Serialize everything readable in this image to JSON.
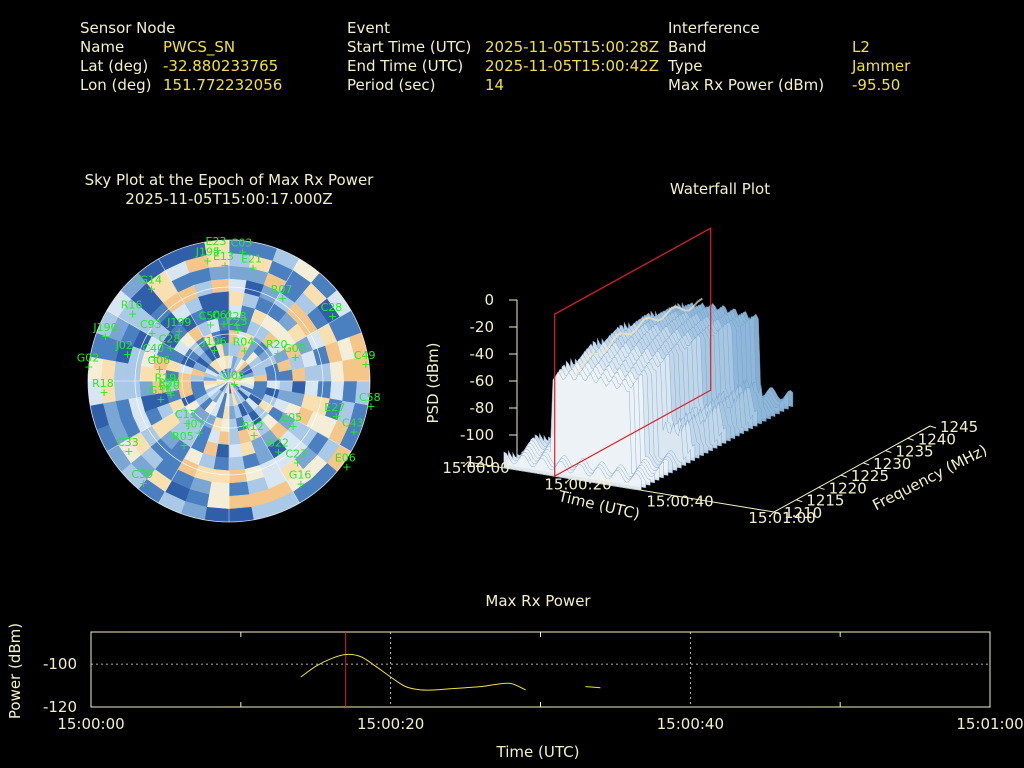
{
  "header": {
    "sensor": {
      "title": "Sensor Node",
      "name_label": "Name",
      "name": "PWCS_SN",
      "lat_label": "Lat (deg)",
      "lat": "-32.880233765",
      "lon_label": "Lon (deg)",
      "lon": "151.772232056"
    },
    "event": {
      "title": "Event",
      "start_label": "Start Time (UTC)",
      "start": "2025-11-05T15:00:28Z",
      "end_label": "End Time (UTC)",
      "end": "2025-11-05T15:00:42Z",
      "period_label": "Period (sec)",
      "period": "14"
    },
    "interference": {
      "title": "Interference",
      "band_label": "Band",
      "band": "L2",
      "type_label": "Type",
      "type": "Jammer",
      "power_label": "Max Rx Power (dBm)",
      "power": "-95.50"
    }
  },
  "colors": {
    "label": "#f5f0c8",
    "value": "#f0e040",
    "satellite": "#22ee22",
    "marker": "#e02020",
    "trace": "#f0e040"
  },
  "chart_data": [
    {
      "type": "heatmap",
      "title": "Sky Plot at the Epoch of Max Rx Power",
      "subtitle": "2025-11-05T15:00:17.000Z",
      "projection": "polar",
      "satellites": [
        {
          "id": "E23",
          "az": -5,
          "el": 84
        },
        {
          "id": "C03",
          "az": 6,
          "el": 83
        },
        {
          "id": "J195",
          "az": -10,
          "el": 78
        },
        {
          "id": "E13",
          "az": -2,
          "el": 74
        },
        {
          "id": "E21",
          "az": 12,
          "el": 74
        },
        {
          "id": "G14",
          "az": -40,
          "el": 77
        },
        {
          "id": "R07",
          "az": 33,
          "el": 63
        },
        {
          "id": "C28",
          "az": 58,
          "el": 78
        },
        {
          "id": "R16",
          "az": -55,
          "el": 75
        },
        {
          "id": "C93",
          "az": -58,
          "el": 58
        },
        {
          "id": "C50",
          "az": -18,
          "el": 38
        },
        {
          "id": "C61",
          "az": -5,
          "el": 37
        },
        {
          "id": "C28",
          "az": 8,
          "el": 36
        },
        {
          "id": "C23",
          "az": 10,
          "el": 33
        },
        {
          "id": "J199",
          "az": -45,
          "el": 45
        },
        {
          "id": "R20",
          "az": 60,
          "el": 36
        },
        {
          "id": "G08",
          "az": 70,
          "el": 45
        },
        {
          "id": "C49",
          "az": 83,
          "el": 88
        },
        {
          "id": "J190",
          "az": -70,
          "el": 84
        },
        {
          "id": "J02",
          "az": -75,
          "el": 67
        },
        {
          "id": "C40",
          "az": -72,
          "el": 50
        },
        {
          "id": "C28",
          "az": -60,
          "el": 43
        },
        {
          "id": "J196",
          "az": -25,
          "el": 22
        },
        {
          "id": "R04",
          "az": 27,
          "el": 22
        },
        {
          "id": "G02",
          "az": -84,
          "el": 90
        },
        {
          "id": "G06",
          "az": -80,
          "el": 45
        },
        {
          "id": "R19",
          "az": -95,
          "el": 40
        },
        {
          "id": "R20",
          "az": -100,
          "el": 38
        },
        {
          "id": "E20",
          "az": -103,
          "el": 38
        },
        {
          "id": "G05",
          "az": 120,
          "el": 4
        },
        {
          "id": "C58",
          "az": 100,
          "el": 92
        },
        {
          "id": "E27",
          "az": 108,
          "el": 72
        },
        {
          "id": "C43",
          "az": 112,
          "el": 86
        },
        {
          "id": "E05",
          "az": 125,
          "el": 50
        },
        {
          "id": "E06",
          "az": 126,
          "el": 93
        },
        {
          "id": "G22",
          "az": 145,
          "el": 55
        },
        {
          "id": "C27",
          "az": 140,
          "el": 68
        },
        {
          "id": "G16",
          "az": 145,
          "el": 80
        },
        {
          "id": "R12",
          "az": 155,
          "el": 38
        },
        {
          "id": "R05",
          "az": -145,
          "el": 50
        },
        {
          "id": "C13",
          "az": -135,
          "el": 38
        },
        {
          "id": "C33",
          "az": -125,
          "el": 78
        },
        {
          "id": "C39",
          "az": -140,
          "el": 85
        },
        {
          "id": "R18",
          "az": -95,
          "el": 80
        },
        {
          "id": "G31",
          "az": -105,
          "el": 45
        },
        {
          "id": "J07",
          "az": -150,
          "el": 38
        }
      ]
    },
    {
      "type": "area",
      "title": "Waterfall Plot",
      "xlabel": "Time (UTC)",
      "ylabel": "Frequency (MHz)",
      "zlabel": "PSD (dBm)",
      "x_ticks": [
        "15:00:00",
        "15:00:20",
        "15:00:40",
        "15:01:00"
      ],
      "y_ticks": [
        1210,
        1215,
        1220,
        1225,
        1230,
        1235,
        1240,
        1245
      ],
      "z_ticks": [
        0,
        -20,
        -40,
        -60,
        -80,
        -100,
        -120
      ],
      "marker_time": "15:00:17"
    },
    {
      "type": "line",
      "title": "Max Rx Power",
      "xlabel": "Time (UTC)",
      "ylabel": "Power (dBm)",
      "x_ticks": [
        "15:00:00",
        "15:00:20",
        "15:00:40",
        "15:01:00"
      ],
      "y_ticks": [
        -100,
        -120
      ],
      "xlim": [
        0,
        60
      ],
      "ylim": [
        -120,
        -85
      ],
      "marker_time_sec": 17,
      "series": [
        {
          "x": [
            14,
            15,
            16,
            17,
            18,
            19,
            20,
            21,
            22,
            23,
            24,
            25,
            26,
            27,
            28,
            29
          ],
          "y": [
            -106,
            -101,
            -97.5,
            -95.5,
            -96.5,
            -101,
            -106,
            -110.5,
            -112,
            -112,
            -111.5,
            -111,
            -110.5,
            -109.5,
            -109,
            -112
          ]
        },
        {
          "x": [
            33,
            34
          ],
          "y": [
            -110.5,
            -111
          ]
        }
      ]
    }
  ]
}
